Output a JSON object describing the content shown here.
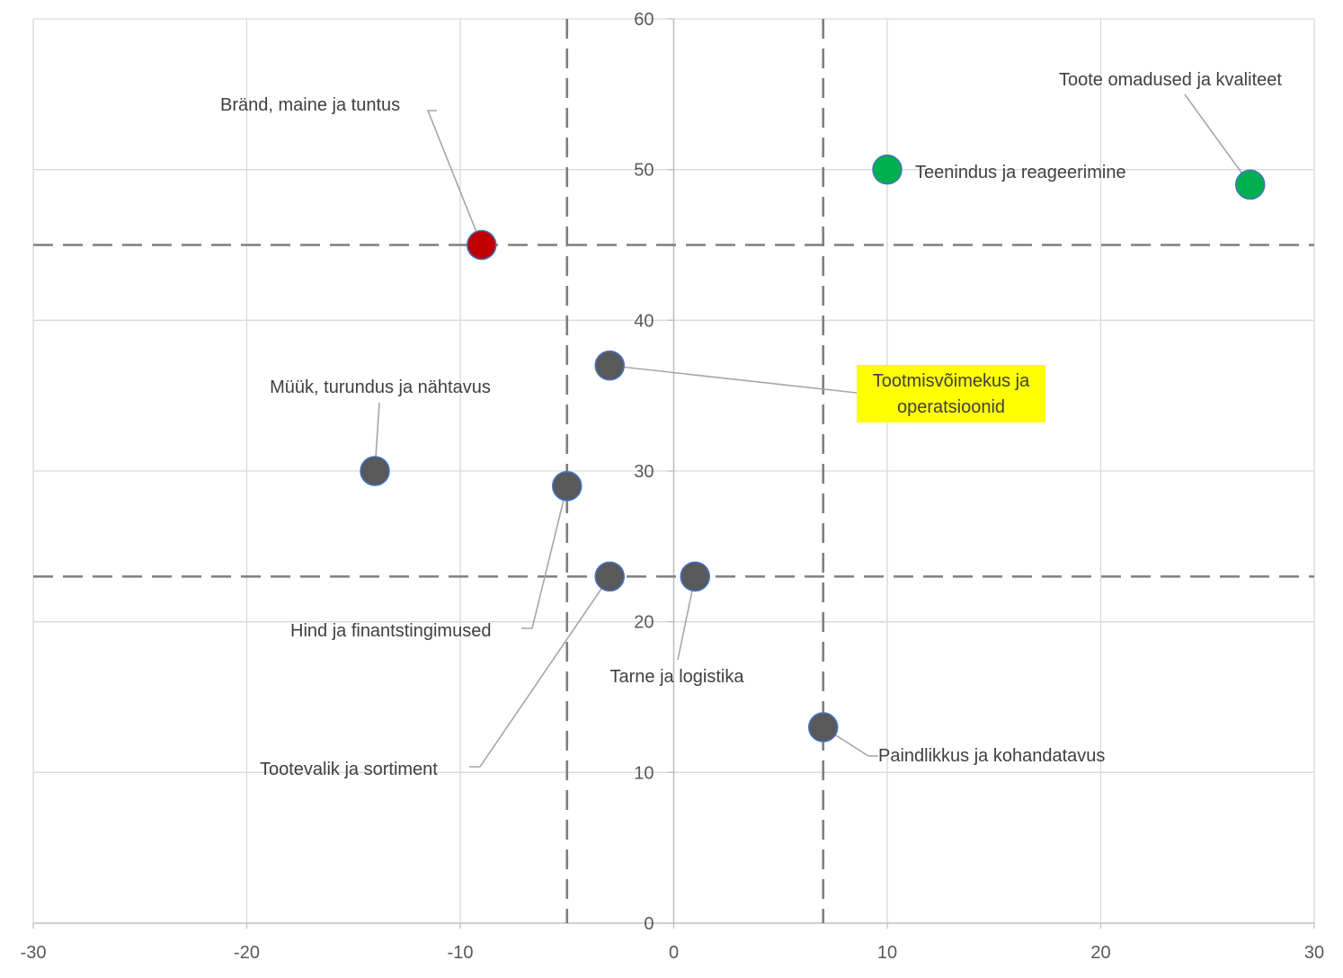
{
  "chart_data": {
    "type": "scatter",
    "title": "",
    "xlabel": "",
    "ylabel": "",
    "xlim": [
      -30,
      30
    ],
    "ylim": [
      0,
      60
    ],
    "x_ticks": [
      -30,
      -20,
      -10,
      0,
      10,
      20,
      30
    ],
    "y_ticks": [
      0,
      10,
      20,
      30,
      40,
      50,
      60
    ],
    "grid": true,
    "reference_lines": {
      "vertical": [
        -5,
        7
      ],
      "horizontal": [
        23,
        45
      ]
    },
    "points": [
      {
        "label": "Bränd, maine ja tuntus",
        "x": -9,
        "y": 45,
        "color": "#c00000"
      },
      {
        "label": "Teenindus ja reageerimine",
        "x": 10,
        "y": 50,
        "color": "#00b050"
      },
      {
        "label": "Toote omadused ja kvaliteet",
        "x": 27,
        "y": 49,
        "color": "#00b050"
      },
      {
        "label": "Tootmisvõimekus ja operatsioonid",
        "x": -3,
        "y": 37,
        "color": "#595959",
        "highlight": "#ffff00"
      },
      {
        "label": "Müük, turundus ja nähtavus",
        "x": -14,
        "y": 30,
        "color": "#595959"
      },
      {
        "label": "Hind ja finantstingimused",
        "x": -5,
        "y": 29,
        "color": "#595959"
      },
      {
        "label": "Tootevalik ja sortiment",
        "x": -3,
        "y": 23,
        "color": "#595959"
      },
      {
        "label": "Tarne ja logistika",
        "x": 1,
        "y": 23,
        "color": "#595959"
      },
      {
        "label": "Paindlikkus ja kohandatavus",
        "x": 7,
        "y": 13,
        "color": "#595959"
      }
    ],
    "colors": {
      "grid": "#d9d9d9",
      "axis": "#bfbfbf",
      "reference": "#7f7f7f",
      "tick_text": "#595959",
      "label_text": "#404040",
      "leader": "#a6a6a6",
      "marker_stroke": "#4472c4"
    }
  }
}
